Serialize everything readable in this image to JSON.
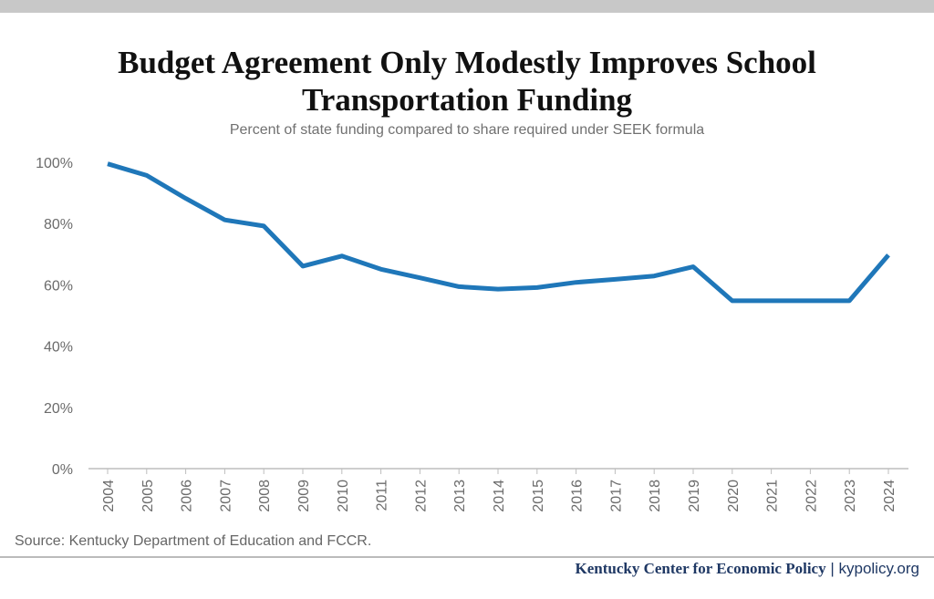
{
  "header": {
    "title_line1": "Budget Agreement Only Modestly Improves School",
    "title_line2": "Transportation Funding",
    "subtitle": "Percent of state funding compared to share required under SEEK formula"
  },
  "footer": {
    "source": "Source: Kentucky Department of Education and FCCR.",
    "organization": "Kentucky Center for Economic Policy",
    "separator": "|",
    "website": "kypolicy.org"
  },
  "chart_data": {
    "type": "line",
    "title": "Budget Agreement Only Modestly Improves School Transportation Funding",
    "subtitle": "Percent of state funding compared to share required under SEEK formula",
    "xlabel": "",
    "ylabel": "",
    "x": [
      "2004",
      "2005",
      "2006",
      "2007",
      "2008",
      "2009",
      "2010",
      "2011",
      "2012",
      "2013",
      "2014",
      "2015",
      "2016",
      "2017",
      "2018",
      "2019",
      "2020",
      "2021",
      "2022",
      "2023",
      "2024"
    ],
    "series": [
      {
        "values": [
          99.5,
          95.7,
          88.2,
          81.2,
          79.2,
          66.1,
          69.4,
          65.1,
          62.3,
          59.4,
          58.6,
          59.1,
          60.8,
          61.8,
          62.9,
          65.9,
          54.8,
          54.8,
          54.8,
          54.8,
          69.7
        ],
        "color": "#1f77b9"
      }
    ],
    "y_ticks": [
      0,
      20,
      40,
      60,
      80,
      100
    ],
    "y_tick_labels": [
      "0%",
      "20%",
      "40%",
      "60%",
      "80%",
      "100%"
    ],
    "ylim": [
      0,
      100
    ],
    "grid": false,
    "legend": "none"
  }
}
